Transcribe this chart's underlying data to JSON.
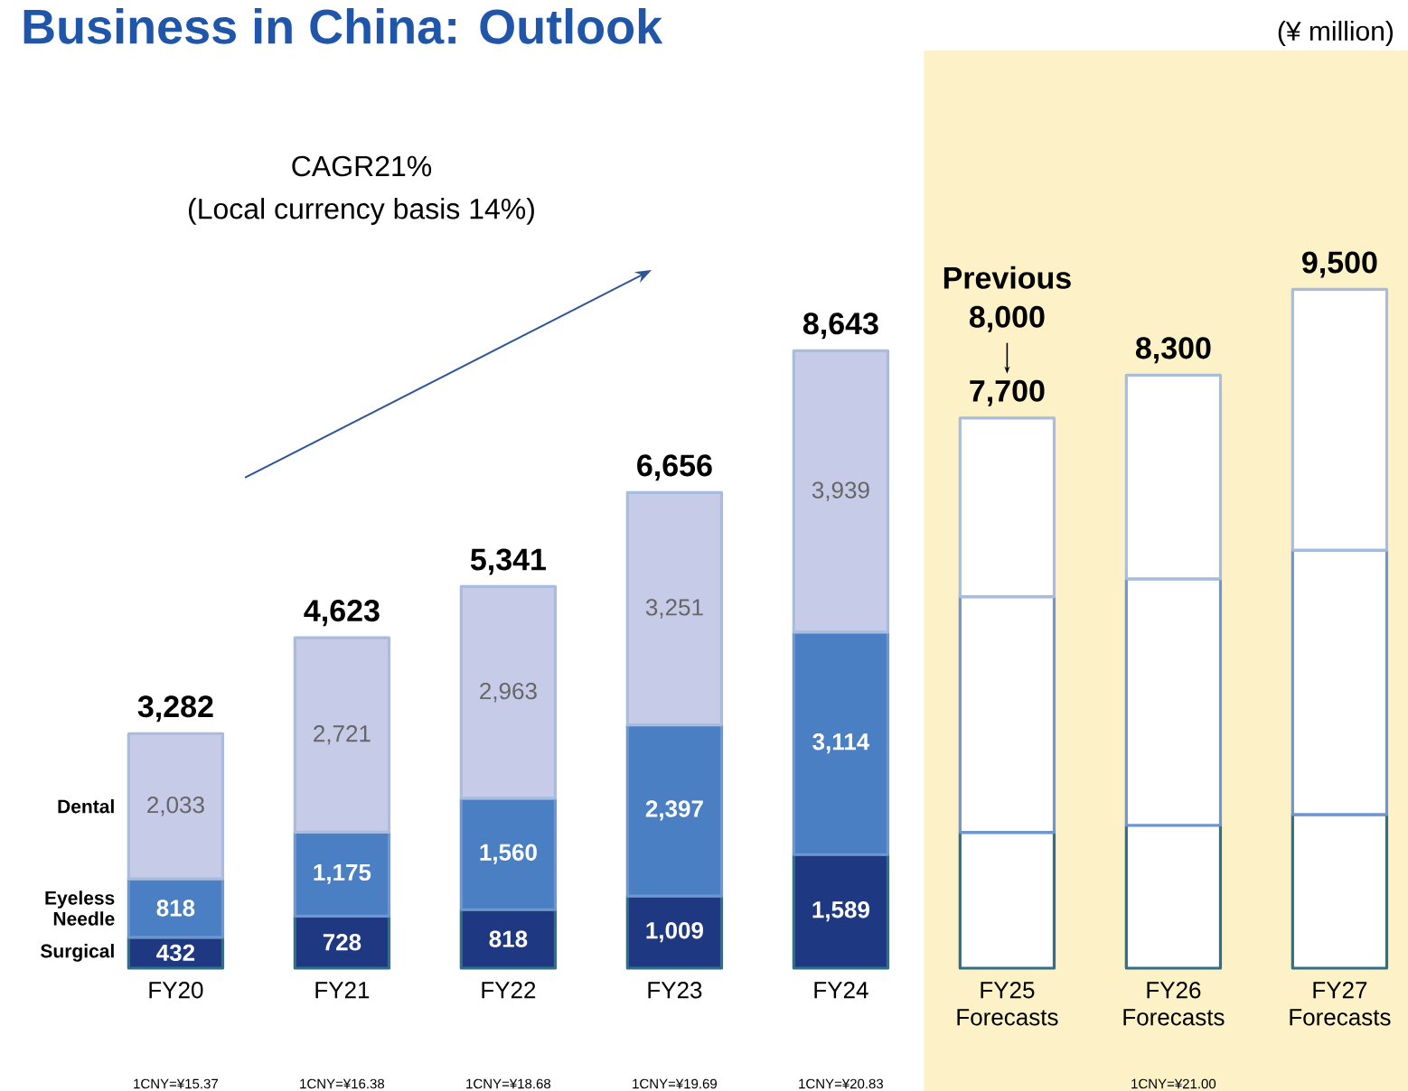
{
  "chart_data": {
    "type": "bar",
    "stacked": true,
    "title": "Business in China: Outlook",
    "categories": [
      "FY20",
      "FY21",
      "FY22",
      "FY23",
      "FY24",
      "FY25 Forecasts",
      "FY26 Forecasts",
      "FY27 Forecasts"
    ],
    "series": [
      {
        "name": "Surgical",
        "color": "#2e7088",
        "colors": [
          "#1f3882",
          "#1f3882",
          "#1f3882",
          "#1f3882",
          "#1f3882",
          "#ffffff",
          "#ffffff",
          "#ffffff"
        ],
        "values": [
          432,
          728,
          818,
          1009,
          1589,
          1900,
          2000,
          2150
        ],
        "value_labels": [
          "432",
          "728",
          "818",
          "1,009",
          "1,589",
          null,
          null,
          null
        ]
      },
      {
        "name": "Eyeless Needle",
        "color": "#6f97cf",
        "colors": [
          "#4a7fc3",
          "#4a7fc3",
          "#4a7fc3",
          "#4a7fc3",
          "#4a7fc3",
          "#ffffff",
          "#ffffff",
          "#ffffff"
        ],
        "values": [
          818,
          1175,
          1560,
          2397,
          3114,
          3300,
          3450,
          3700
        ],
        "value_labels": [
          "818",
          "1,175",
          "1,560",
          "2,397",
          "3,114",
          null,
          null,
          null
        ]
      },
      {
        "name": "Dental",
        "color": "#a8bce0",
        "colors": [
          "#c6cbe7",
          "#c6cbe7",
          "#c6cbe7",
          "#c6cbe7",
          "#c6cbe7",
          "#ffffff",
          "#ffffff",
          "#ffffff"
        ],
        "values": [
          2033,
          2721,
          2963,
          3251,
          3939,
          2500,
          2850,
          3650
        ],
        "value_labels": [
          "2,033",
          "2,721",
          "2,963",
          "3,251",
          "3,939",
          null,
          null,
          null
        ]
      }
    ],
    "totals": [
      "3,282",
      "4,623",
      "5,341",
      "6,656",
      "8,643",
      "7,700",
      "8,300",
      "9,500"
    ],
    "bands": [
      {
        "axis": "x",
        "from": "FY25 Forecasts",
        "to": "FY27 Forecasts",
        "color": "#fdf1c8"
      }
    ],
    "annotations": [
      "(¥ million)",
      "CAGR21%",
      "(Local currency basis 14%)",
      "Previous",
      "8,000",
      "1CNY=¥15.37",
      "1CNY=¥16.38",
      "1CNY=¥18.68",
      "1CNY=¥19.69",
      "1CNY=¥20.83",
      "1CNY=¥21.00"
    ]
  }
}
